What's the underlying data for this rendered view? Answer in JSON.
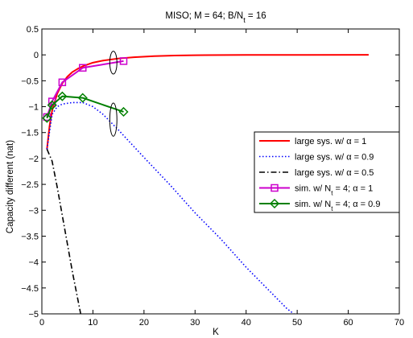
{
  "chart_data": {
    "type": "line",
    "title_parts": [
      "MISO; M = 64; B/N",
      "t",
      " = 16"
    ],
    "xlabel": "K",
    "ylabel": "Capacity different (nat)",
    "xlim": [
      0,
      70
    ],
    "ylim": [
      -5,
      0.5
    ],
    "xticks": [
      0,
      10,
      20,
      30,
      40,
      50,
      60,
      70
    ],
    "yticks": [
      0.5,
      0,
      -0.5,
      -1,
      -1.5,
      -2,
      -2.5,
      -3,
      -3.5,
      -4,
      -4.5,
      -5
    ],
    "ytick_labels": [
      "0.5",
      "0",
      "−0.5",
      "−1",
      "−1.5",
      "−2",
      "−2.5",
      "−3",
      "−3.5",
      "−4",
      "−4.5",
      "−5"
    ],
    "grid": false,
    "legend_position": "right",
    "series": [
      {
        "name_parts": [
          "large sys. w/ ",
          "α",
          " = 1"
        ],
        "color": "#ff0000",
        "style": "solid",
        "marker": "none",
        "x": [
          1,
          1.5,
          2,
          3,
          4,
          5,
          6,
          7,
          8,
          10,
          12,
          15,
          18,
          22,
          26,
          30,
          40,
          50,
          64
        ],
        "y": [
          -1.82,
          -1.38,
          -1.08,
          -0.75,
          -0.55,
          -0.42,
          -0.33,
          -0.27,
          -0.22,
          -0.15,
          -0.11,
          -0.07,
          -0.045,
          -0.025,
          -0.013,
          -0.006,
          -0.002,
          -0.001,
          0
        ]
      },
      {
        "name_parts": [
          "large sys. w/ ",
          "α",
          " = 0.9"
        ],
        "color": "#0000ff",
        "style": "dotted",
        "marker": "none",
        "x": [
          1,
          2,
          3,
          4,
          6,
          8,
          10,
          12,
          15,
          20,
          25,
          30,
          35,
          40,
          45,
          48,
          50
        ],
        "y": [
          -1.82,
          -1.15,
          -1.0,
          -0.95,
          -0.92,
          -0.92,
          -1.0,
          -1.15,
          -1.45,
          -1.98,
          -2.5,
          -3.05,
          -3.55,
          -4.1,
          -4.6,
          -4.9,
          -5.05
        ]
      },
      {
        "name_parts": [
          "large sys. w/ ",
          "α",
          " = 0.5"
        ],
        "color": "#000000",
        "style": "dashdot",
        "marker": "none",
        "x": [
          1,
          2,
          3,
          4,
          5,
          6,
          7,
          7.6
        ],
        "y": [
          -1.82,
          -2.05,
          -2.55,
          -3.1,
          -3.65,
          -4.2,
          -4.7,
          -5.0
        ]
      },
      {
        "name_parts": [
          "sim. w/ N",
          "t",
          " = 4; ",
          "α",
          " = 1"
        ],
        "color": "#cc00cc",
        "style": "solid",
        "marker": "square",
        "x": [
          1,
          2,
          4,
          8,
          16
        ],
        "y": [
          -1.2,
          -0.9,
          -0.53,
          -0.25,
          -0.12
        ]
      },
      {
        "name_parts": [
          "sim. w/ N",
          "t",
          " = 4; ",
          "α",
          " = 0.9"
        ],
        "color": "#008000",
        "style": "solid",
        "marker": "diamond",
        "x": [
          1,
          2,
          4,
          8,
          16
        ],
        "y": [
          -1.22,
          -0.97,
          -0.8,
          -0.83,
          -1.1
        ]
      }
    ],
    "annotations": [
      {
        "type": "ellipse",
        "cx": 14,
        "cy": -0.15,
        "rx": 0.7,
        "ry": 0.22
      },
      {
        "type": "ellipse",
        "cx": 14,
        "cy": -1.25,
        "rx": 0.7,
        "ry": 0.32
      }
    ]
  }
}
